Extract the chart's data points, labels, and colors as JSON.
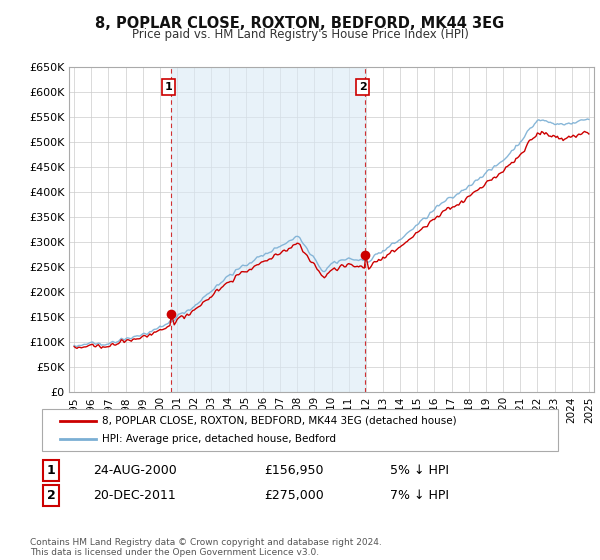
{
  "title": "8, POPLAR CLOSE, ROXTON, BEDFORD, MK44 3EG",
  "subtitle": "Price paid vs. HM Land Registry's House Price Index (HPI)",
  "ylabel_ticks": [
    "£0",
    "£50K",
    "£100K",
    "£150K",
    "£200K",
    "£250K",
    "£300K",
    "£350K",
    "£400K",
    "£450K",
    "£500K",
    "£550K",
    "£600K",
    "£650K"
  ],
  "ytick_values": [
    0,
    50000,
    100000,
    150000,
    200000,
    250000,
    300000,
    350000,
    400000,
    450000,
    500000,
    550000,
    600000,
    650000
  ],
  "xlim": [
    1994.7,
    2025.3
  ],
  "ylim": [
    0,
    650000
  ],
  "background_color": "#ffffff",
  "grid_color": "#cccccc",
  "hpi_color": "#7bafd4",
  "hpi_fill_color": "#daeaf5",
  "price_color": "#cc0000",
  "transaction1_year": 2000.64,
  "transaction1_price": 156950,
  "transaction2_year": 2011.97,
  "transaction2_price": 275000,
  "legend_house_label": "8, POPLAR CLOSE, ROXTON, BEDFORD, MK44 3EG (detached house)",
  "legend_hpi_label": "HPI: Average price, detached house, Bedford",
  "table_row1": [
    "1",
    "24-AUG-2000",
    "£156,950",
    "5% ↓ HPI"
  ],
  "table_row2": [
    "2",
    "20-DEC-2011",
    "£275,000",
    "7% ↓ HPI"
  ],
  "footnote": "Contains HM Land Registry data © Crown copyright and database right 2024.\nThis data is licensed under the Open Government Licence v3.0."
}
